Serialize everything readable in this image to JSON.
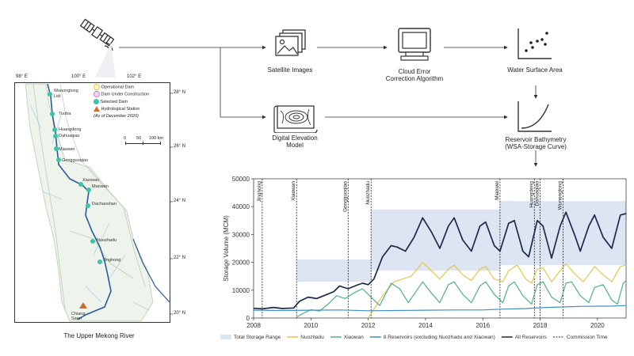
{
  "flow": {
    "satellite_images": "Satellite Images",
    "cloud_error_line1": "Cloud Error",
    "cloud_error_line2": "Correction Algorithm",
    "water_surface_area": "Water Surface Area",
    "digital_elevation_line1": "Digital Elevation",
    "digital_elevation_line2": "Model",
    "bathymetry_line1": "Reservoir Bathymetry",
    "bathymetry_line2": "(WSA-Storage  Curve)"
  },
  "map": {
    "caption": "The Upper Mekong River",
    "lon_labels": [
      "98° E",
      "100° E",
      "102° E"
    ],
    "lat_labels": [
      "28° N",
      "26° N",
      "24° N",
      "22° N",
      "20° N"
    ],
    "legend": {
      "operational": "Operational Dam",
      "under_construction": "Dam Under Construction",
      "selected": "Selected Dam",
      "hydrological": "Hydrological Station",
      "as_of": "(As of December 2020)"
    },
    "scale": {
      "ticks": [
        "0",
        "50",
        "100 km"
      ]
    },
    "dams": [
      "Wunonglong",
      "Lidi",
      "Tuoba",
      "Huangdeng",
      "Dahuaqiao",
      "Miaowei",
      "Gongguoqiao",
      "Xiaowan",
      "Manwan",
      "Dachaoshan",
      "Nuozhadu",
      "Jinghong"
    ],
    "station": "Chiang Saen"
  },
  "chart_data": {
    "type": "line",
    "ylabel": "Storage Volume (MCM)",
    "xlabel": "",
    "xlim": [
      2008,
      2021
    ],
    "ylim": [
      0,
      50000
    ],
    "x_ticks": [
      2008,
      2010,
      2012,
      2014,
      2016,
      2018,
      2020
    ],
    "y_ticks": [
      0,
      10000,
      20000,
      30000,
      40000,
      50000
    ],
    "commission": [
      {
        "name": "Jinghong",
        "year": 2008.3
      },
      {
        "name": "Xiaowan",
        "year": 2009.5
      },
      {
        "name": "Gongguoqiao",
        "year": 2011.3
      },
      {
        "name": "Nuozhadu",
        "year": 2012.1
      },
      {
        "name": "Miaowei",
        "year": 2016.6
      },
      {
        "name": "Huangdeng",
        "year": 2017.8
      },
      {
        "name": "Dahuaqiao",
        "year": 2018.0
      },
      {
        "name": "Wunonglong",
        "year": 2018.8
      }
    ],
    "range_bands": [
      {
        "x0": 2009.5,
        "x1": 2012.1,
        "y0": 13000,
        "y1": 21000
      },
      {
        "x0": 2012.1,
        "x1": 2016.6,
        "y0": 17000,
        "y1": 39000
      },
      {
        "x0": 2016.6,
        "x1": 2021.0,
        "y0": 19000,
        "y1": 42000
      }
    ],
    "series": [
      {
        "name": "All Reservoirs",
        "color": "#1b2a4a",
        "points": [
          [
            2008.0,
            3500
          ],
          [
            2008.3,
            3300
          ],
          [
            2008.7,
            3800
          ],
          [
            2009.0,
            3400
          ],
          [
            2009.4,
            3600
          ],
          [
            2009.6,
            6000
          ],
          [
            2009.9,
            7500
          ],
          [
            2010.2,
            7000
          ],
          [
            2010.5,
            8200
          ],
          [
            2010.8,
            9500
          ],
          [
            2011.0,
            11500
          ],
          [
            2011.3,
            10500
          ],
          [
            2011.6,
            11800
          ],
          [
            2011.8,
            12500
          ],
          [
            2012.0,
            12000
          ],
          [
            2012.2,
            14000
          ],
          [
            2012.5,
            22000
          ],
          [
            2012.8,
            26000
          ],
          [
            2013.0,
            25500
          ],
          [
            2013.3,
            24000
          ],
          [
            2013.6,
            29000
          ],
          [
            2013.9,
            36000
          ],
          [
            2014.2,
            31000
          ],
          [
            2014.5,
            25000
          ],
          [
            2014.8,
            33000
          ],
          [
            2015.0,
            36000
          ],
          [
            2015.3,
            28000
          ],
          [
            2015.6,
            24000
          ],
          [
            2015.9,
            33000
          ],
          [
            2016.1,
            34500
          ],
          [
            2016.4,
            26000
          ],
          [
            2016.6,
            24000
          ],
          [
            2016.9,
            34000
          ],
          [
            2017.1,
            35000
          ],
          [
            2017.4,
            24000
          ],
          [
            2017.6,
            22000
          ],
          [
            2017.9,
            35000
          ],
          [
            2018.1,
            33000
          ],
          [
            2018.4,
            21500
          ],
          [
            2018.7,
            33000
          ],
          [
            2018.9,
            38000
          ],
          [
            2019.2,
            30000
          ],
          [
            2019.4,
            24000
          ],
          [
            2019.7,
            33000
          ],
          [
            2019.9,
            37000
          ],
          [
            2020.2,
            29000
          ],
          [
            2020.5,
            25000
          ],
          [
            2020.8,
            37000
          ],
          [
            2021.0,
            37500
          ]
        ]
      },
      {
        "name": "Nuozhadu",
        "color": "#e3c64c",
        "points": [
          [
            2012.0,
            0
          ],
          [
            2012.5,
            8000
          ],
          [
            2012.9,
            13000
          ],
          [
            2013.2,
            14000
          ],
          [
            2013.5,
            15000
          ],
          [
            2013.9,
            20000
          ],
          [
            2014.2,
            17000
          ],
          [
            2014.5,
            14000
          ],
          [
            2014.8,
            17500
          ],
          [
            2015.0,
            19000
          ],
          [
            2015.3,
            15500
          ],
          [
            2015.6,
            13500
          ],
          [
            2015.9,
            17500
          ],
          [
            2016.1,
            18500
          ],
          [
            2016.4,
            14000
          ],
          [
            2016.7,
            13000
          ],
          [
            2016.9,
            17000
          ],
          [
            2017.2,
            19000
          ],
          [
            2017.5,
            14000
          ],
          [
            2017.7,
            12500
          ],
          [
            2017.9,
            17500
          ],
          [
            2018.1,
            18000
          ],
          [
            2018.4,
            13000
          ],
          [
            2018.7,
            17000
          ],
          [
            2018.9,
            19500
          ],
          [
            2019.2,
            16000
          ],
          [
            2019.5,
            13000
          ],
          [
            2019.8,
            17000
          ],
          [
            2019.9,
            18500
          ],
          [
            2020.2,
            15500
          ],
          [
            2020.5,
            13000
          ],
          [
            2020.8,
            18500
          ],
          [
            2021.0,
            19000
          ]
        ]
      },
      {
        "name": "Xiaowan",
        "color": "#4fae8c",
        "points": [
          [
            2009.5,
            300
          ],
          [
            2009.7,
            1500
          ],
          [
            2010.0,
            3000
          ],
          [
            2010.3,
            2500
          ],
          [
            2010.6,
            5000
          ],
          [
            2010.9,
            8000
          ],
          [
            2011.2,
            7000
          ],
          [
            2011.5,
            9000
          ],
          [
            2011.8,
            10500
          ],
          [
            2012.1,
            7500
          ],
          [
            2012.4,
            4500
          ],
          [
            2012.8,
            12500
          ],
          [
            2013.1,
            10500
          ],
          [
            2013.4,
            5500
          ],
          [
            2013.7,
            10000
          ],
          [
            2013.9,
            13000
          ],
          [
            2014.2,
            9000
          ],
          [
            2014.5,
            5500
          ],
          [
            2014.8,
            12000
          ],
          [
            2015.0,
            13000
          ],
          [
            2015.3,
            8500
          ],
          [
            2015.6,
            5500
          ],
          [
            2015.9,
            11500
          ],
          [
            2016.1,
            13000
          ],
          [
            2016.4,
            8500
          ],
          [
            2016.7,
            5500
          ],
          [
            2016.9,
            11500
          ],
          [
            2017.1,
            13000
          ],
          [
            2017.4,
            8000
          ],
          [
            2017.7,
            5000
          ],
          [
            2017.9,
            12000
          ],
          [
            2018.1,
            13000
          ],
          [
            2018.4,
            7500
          ],
          [
            2018.7,
            5500
          ],
          [
            2018.9,
            12500
          ],
          [
            2019.1,
            13000
          ],
          [
            2019.4,
            8000
          ],
          [
            2019.7,
            5500
          ],
          [
            2019.9,
            11000
          ],
          [
            2020.2,
            12000
          ],
          [
            2020.5,
            6500
          ],
          [
            2020.7,
            5000
          ],
          [
            2020.9,
            12500
          ],
          [
            2021.0,
            13500
          ]
        ]
      },
      {
        "name": "8 Reservoirs (excluding Nuozhadu and Xiaowan)",
        "color": "#3f8fc0",
        "points": [
          [
            2008.0,
            2800
          ],
          [
            2009.0,
            2700
          ],
          [
            2010.0,
            2800
          ],
          [
            2011.0,
            2900
          ],
          [
            2012.0,
            2600
          ],
          [
            2013.0,
            2700
          ],
          [
            2014.0,
            2800
          ],
          [
            2015.0,
            2900
          ],
          [
            2016.0,
            2900
          ],
          [
            2016.7,
            3200
          ],
          [
            2017.5,
            3400
          ],
          [
            2018.0,
            3700
          ],
          [
            2018.9,
            4000
          ],
          [
            2019.5,
            4200
          ],
          [
            2020.5,
            4300
          ],
          [
            2021.0,
            4500
          ]
        ]
      }
    ],
    "legend": {
      "total_range": "Total Storage Range",
      "commission": "Commission Time"
    }
  }
}
